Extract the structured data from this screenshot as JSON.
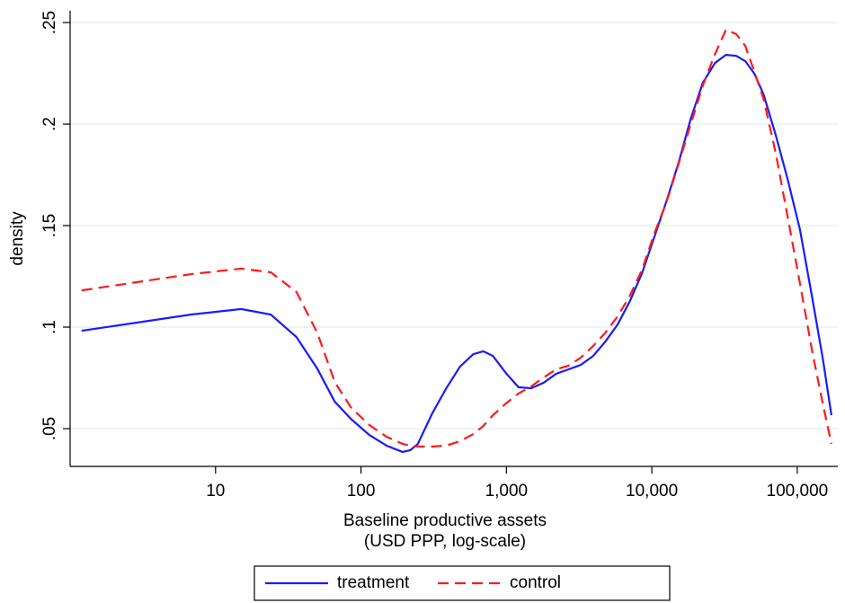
{
  "chart_data": {
    "type": "line",
    "ylabel": "density",
    "xlabel": [
      "Baseline productive assets",
      "(USD PPP, log-scale)"
    ],
    "xscale": "log",
    "x": [
      1.2,
      6.8,
      15,
      24,
      36,
      50,
      66,
      85,
      114,
      150,
      193,
      218,
      246,
      309,
      386,
      479,
      592,
      693,
      808,
      991,
      1212,
      1480,
      1803,
      2197,
      2673,
      3250,
      3948,
      4795,
      5821,
      7066,
      8567,
      10391,
      12601,
      15281,
      18525,
      22431,
      27195,
      32345,
      38075,
      43945,
      50745,
      58645,
      71045,
      86045,
      104245,
      126345,
      150145,
      171745
    ],
    "series": [
      {
        "name": "treatment",
        "color": "#1a1aff",
        "linestyle": "solid",
        "values": [
          0.0982,
          0.1062,
          0.1089,
          0.1062,
          0.0951,
          0.0796,
          0.0633,
          0.0549,
          0.0469,
          0.0416,
          0.0385,
          0.0394,
          0.0425,
          0.0575,
          0.0699,
          0.0805,
          0.0867,
          0.0881,
          0.0858,
          0.0774,
          0.0704,
          0.0699,
          0.0726,
          0.077,
          0.0792,
          0.0814,
          0.0858,
          0.0929,
          0.1013,
          0.1128,
          0.1266,
          0.1443,
          0.162,
          0.181,
          0.2027,
          0.2204,
          0.2301,
          0.2341,
          0.2336,
          0.231,
          0.2248,
          0.2146,
          0.1947,
          0.1726,
          0.1482,
          0.115,
          0.0841,
          0.0566
        ]
      },
      {
        "name": "control",
        "color": "#ff1a1a",
        "linestyle": "dashed",
        "values": [
          0.1181,
          0.1261,
          0.1288,
          0.127,
          0.1173,
          0.0973,
          0.073,
          0.0606,
          0.0518,
          0.046,
          0.0425,
          0.0416,
          0.0412,
          0.0412,
          0.0416,
          0.0438,
          0.0473,
          0.0513,
          0.0566,
          0.0624,
          0.0673,
          0.0708,
          0.0752,
          0.0792,
          0.081,
          0.085,
          0.0907,
          0.0973,
          0.1053,
          0.1155,
          0.1283,
          0.146,
          0.1615,
          0.1805,
          0.2,
          0.219,
          0.2345,
          0.2465,
          0.2443,
          0.2385,
          0.2257,
          0.2124,
          0.1858,
          0.154,
          0.1217,
          0.0885,
          0.0619,
          0.0425
        ]
      }
    ],
    "xlim": [
      1,
      190000
    ],
    "xticks": [
      10,
      100,
      {
        "value": 1000,
        "label": "1,000"
      },
      {
        "value": 10000,
        "label": "10,000"
      },
      {
        "value": 100000,
        "label": "100,000"
      }
    ],
    "ylim": [
      0.0314,
      0.2558
    ],
    "yticks": [
      {
        "value": 0.05,
        "label": ".05"
      },
      {
        "value": 0.1,
        "label": ".1"
      },
      {
        "value": 0.15,
        "label": ".15"
      },
      {
        "value": 0.2,
        "label": ".2"
      },
      {
        "value": 0.25,
        "label": ".25"
      }
    ],
    "grid": true,
    "legend": "bottom"
  }
}
